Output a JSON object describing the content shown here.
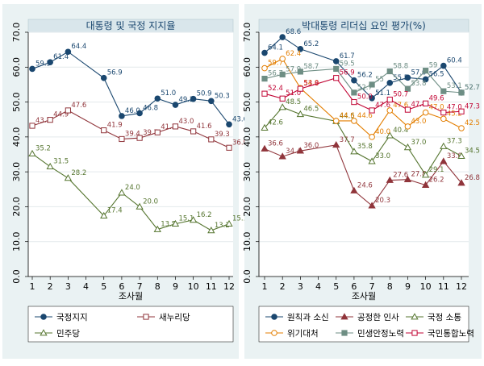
{
  "chart_data": [
    {
      "type": "line",
      "title": "대통령 및 국정 지지율",
      "xlabel": "조사월",
      "ylabel": "",
      "x": [
        1,
        2,
        3,
        5,
        6,
        7,
        8,
        9,
        10,
        11,
        12
      ],
      "xticks": [
        1,
        2,
        3,
        4,
        5,
        6,
        7,
        8,
        9,
        10,
        11,
        12
      ],
      "yticks": [
        0,
        10,
        20,
        30,
        40,
        50,
        60,
        70
      ],
      "ylim": [
        0,
        70
      ],
      "grid": true,
      "legend_position": "bottom",
      "series": [
        {
          "name": "국정지지",
          "color": "#1a476f",
          "marker": "filled-circle",
          "values": [
            59.5,
            61.4,
            64.4,
            56.9,
            46.0,
            46.8,
            51.0,
            49.2,
            50.9,
            50.3,
            43.6
          ],
          "labels": [
            "59.5",
            "61.4",
            "64.4",
            "56.9",
            "46.0",
            "46.8",
            "51.0",
            "49.2",
            "50.9",
            "50.3",
            "43.6"
          ]
        },
        {
          "name": "새누리당",
          "color": "#90353b",
          "marker": "hollow-square",
          "values": [
            43.2,
            44.9,
            47.6,
            41.9,
            39.4,
            39.7,
            41.3,
            43.0,
            41.6,
            39.3,
            36.9
          ],
          "labels": [
            "43.2",
            "44.9",
            "47.6",
            "41.9",
            "39.4",
            "39.7",
            "41.3",
            "43.0",
            "41.6",
            "39.3",
            "36.9"
          ]
        },
        {
          "name": "민주당",
          "color": "#55752f",
          "marker": "hollow-triangle",
          "values": [
            35.2,
            31.5,
            28.2,
            17.4,
            24.0,
            20.0,
            13.5,
            15.1,
            16.2,
            13.2,
            15.1
          ],
          "labels": [
            "35.2",
            "31.5",
            "28.2",
            "17.4",
            "24.0",
            "20.0",
            "13.5",
            "15.1",
            "16.2",
            "13.2",
            "15.1"
          ]
        }
      ]
    },
    {
      "type": "line",
      "title": "박대통령 리더십 요인 평가(%)",
      "xlabel": "조사월",
      "ylabel": "",
      "x": [
        1,
        2,
        3,
        5,
        6,
        7,
        8,
        9,
        10,
        11,
        12
      ],
      "xticks": [
        1,
        2,
        3,
        4,
        5,
        6,
        7,
        8,
        9,
        10,
        11,
        12
      ],
      "yticks": [
        0,
        10,
        20,
        30,
        40,
        50,
        60,
        70
      ],
      "ylim": [
        0,
        70
      ],
      "grid": true,
      "legend_position": "bottom",
      "series": [
        {
          "name": "원칙과 소신",
          "color": "#1a476f",
          "marker": "filled-circle",
          "values": [
            64.1,
            68.6,
            65.2,
            61.7,
            56.2,
            51.1,
            55.5,
            57.0,
            56.5,
            60.4,
            52.7
          ],
          "labels": [
            "64.1",
            "68.6",
            "65.2",
            "61.7",
            "56.2",
            "51.1",
            "55.5",
            "57.0",
            "56.5",
            "60.4",
            "52.7"
          ]
        },
        {
          "name": "공정한 인사",
          "color": "#90353b",
          "marker": "filled-triangle",
          "values": [
            36.6,
            34.4,
            36.0,
            37.7,
            24.6,
            20.3,
            27.6,
            27.8,
            26.2,
            33.0,
            26.8
          ],
          "labels": [
            "36.6",
            "34.4",
            "36.0",
            "37.7",
            "24.6",
            "20.3",
            "27.6",
            "27.8",
            "26.2",
            "33.0",
            "26.8"
          ]
        },
        {
          "name": "국정 소통",
          "color": "#55752f",
          "marker": "hollow-triangle",
          "values": [
            42.6,
            48.5,
            46.5,
            44.5,
            35.8,
            33.0,
            40.4,
            37.0,
            29.1,
            37.3,
            34.5
          ],
          "labels": [
            "42.6",
            "48.5",
            "46.5",
            "44.5",
            "35.8",
            "33.0",
            "40.4",
            "37.0",
            "29.1",
            "37.3",
            "34.5"
          ]
        },
        {
          "name": "위기대처",
          "color": "#e37e00",
          "marker": "hollow-circle",
          "values": [
            59.7,
            62.4,
            54.0,
            44.6,
            44.6,
            40.0,
            47.6,
            43.0,
            47.0,
            45.2,
            42.5
          ],
          "labels": [
            "59.7",
            "62.4",
            "54.0",
            "44.6",
            "44.6",
            "40.0",
            "47.6",
            "43.0",
            "47.0",
            "45.2",
            "42.5"
          ]
        },
        {
          "name": "민생안정노력",
          "color": "#6e8e84",
          "marker": "filled-square",
          "values": [
            56.7,
            57.9,
            58.7,
            59.5,
            52.7,
            55.0,
            58.8,
            53.8,
            59.0,
            53.1,
            52.7
          ],
          "labels": [
            "56.7",
            "57.9",
            "58.7",
            "59.5",
            "52.7",
            "55",
            "58.8",
            "53.8",
            "59",
            "53.1",
            "52.7"
          ]
        },
        {
          "name": "국민통합노력",
          "color": "#c10534",
          "marker": "hollow-square",
          "values": [
            52.4,
            51.0,
            53.8,
            56.9,
            50.0,
            47.6,
            50.7,
            47.8,
            49.6,
            47.0,
            47.3
          ],
          "labels": [
            "52.4",
            "51.0",
            "53.8",
            "56.9",
            "50.0",
            "47.6",
            "50.7",
            "47.8",
            "49.6",
            "47.0",
            "47.3"
          ]
        }
      ]
    }
  ]
}
